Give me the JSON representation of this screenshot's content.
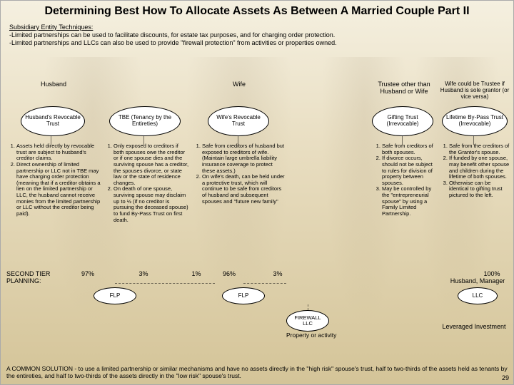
{
  "title": "Determining Best How To Allocate Assets As Between A Married Couple Part II",
  "subHeading": "Subsidiary Entity Techniques:",
  "subLines": [
    "-Limited partnerships can be used to facilitate discounts, for estate tax purposes, and for charging order protection.",
    "-Limited partnerships and LLCs can also be used to provide \"firewall protection\" from activities or properties owned."
  ],
  "cols": {
    "top": [
      "Husband",
      "",
      "Wife",
      "",
      "Trustee other than Husband or Wife",
      "Wife could be Trustee if Husband is sole grantor (or vice versa)"
    ],
    "ovals": [
      "Husband's Revocable Trust",
      "TBE (Tenancy by the Entireties)",
      "Wife's Revocable Trust",
      "",
      "Gifting Trust (Irrevocable)",
      "Lifetime By-Pass Trust (Irrevocable)"
    ],
    "body": [
      "<ol><li>Assets held directly by revocable trust are subject to husband's creditor claims.</li><li>Direct ownership of limited partnership or LLC not in TBE may have charging order protection (meaning that if a creditor obtains a lien on the limited partnership or LLC, the husband cannot receive monies from the limited partnership or LLC without the creditor being paid).</li></ol>",
      "<ol><li>Only exposed to creditors if both spouses owe the creditor or if one spouse dies and the surviving spouse has a creditor, the spouses divorce, or state law or the state of residence changes.</li><li>On death of one spouse, surviving spouse may disclaim up to ½ (if no creditor is pursuing the deceased spouse) to fund By-Pass Trust on first death.</li></ol>",
      "<ol><li>Safe from creditors of husband but exposed to creditors of wife. (Maintain large umbrella liability insurance coverage to protect these assets.)</li><li>On wife's death, can be held under a protective trust, which will continue to be safe from creditors of husband and subsequent spouses and \"future new family\"</li></ol>",
      "",
      "<ol><li>Safe from creditors of both spouses.</li><li>If divorce occurs, should not be subject to rules for division of property between spouses.</li><li>May be controlled by the \"entrepreneurial spouse\" by using a Family Limited Partnership.</li></ol>",
      "<ol><li>Safe from the creditors of the Grantor's spouse.</li><li>If funded by one spouse, may benefit other spouse and children during the lifetime of both spouses.</li><li>Otherwise can be identical to gifting trust pictured to the left.</li></ol>"
    ],
    "pct": [
      "97%",
      "3%",
      "1%",
      "96%",
      "3%",
      "",
      "100%"
    ]
  },
  "planLabel": "SECOND TIER PLANNING:",
  "flp": {
    "left": "FLP",
    "mid": "FLP",
    "fw": "FIREWALL LLC",
    "right": "LLC"
  },
  "hmg": "Husband, Manager",
  "prop": "Property or activity",
  "lev": "Leveraged Investment",
  "bottom": "A COMMON SOLUTION - to use a limited partnership or similar mechanisms and have no assets directly in the \"high risk\" spouse's trust, half to two-thirds of the assets held as tenants by the entireties, and half to two-thirds of the assets directly in the \"low risk\" spouse's trust.",
  "page": "29",
  "ovalStyle": {
    "w": [
      90,
      100,
      86,
      0,
      86,
      92
    ],
    "h": 42
  },
  "flpOvals": {
    "w": 60,
    "h": 24,
    "fw_w": 60,
    "fw_h": 30,
    "llc_w": 56
  },
  "colors": {
    "ovalBg": "#ffffff"
  }
}
